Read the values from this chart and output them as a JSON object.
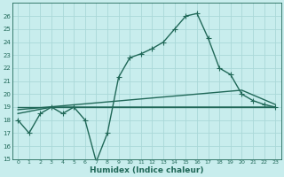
{
  "xlabel": "Humidex (Indice chaleur)",
  "xlim": [
    -0.5,
    23.5
  ],
  "ylim": [
    15,
    27
  ],
  "yticks": [
    15,
    16,
    17,
    18,
    19,
    20,
    21,
    22,
    23,
    24,
    25,
    26
  ],
  "xticks": [
    0,
    1,
    2,
    3,
    4,
    5,
    6,
    7,
    8,
    9,
    10,
    11,
    12,
    13,
    14,
    15,
    16,
    17,
    18,
    19,
    20,
    21,
    22,
    23
  ],
  "bg_color": "#c8eded",
  "grid_color": "#aad8d8",
  "line_color": "#206858",
  "line1_x": [
    0,
    1,
    2,
    3,
    4,
    5,
    6,
    7,
    8,
    9,
    10,
    11,
    12,
    13,
    14,
    15,
    16,
    17,
    18,
    19,
    20,
    21,
    22,
    23
  ],
  "line1_y": [
    18.0,
    17.0,
    18.5,
    19.0,
    18.5,
    19.0,
    18.0,
    14.8,
    17.0,
    21.3,
    22.8,
    23.1,
    23.5,
    24.0,
    25.0,
    26.0,
    26.2,
    24.3,
    22.0,
    21.5,
    20.0,
    19.5,
    19.2,
    19.0
  ],
  "line2_x": [
    0,
    3,
    23
  ],
  "line2_y": [
    18.5,
    19.0,
    19.0
  ],
  "line3_x": [
    0,
    23
  ],
  "line3_y": [
    19.0,
    19.0
  ],
  "line4_x": [
    0,
    20,
    23
  ],
  "line4_y": [
    18.8,
    20.3,
    19.2
  ],
  "markersize": 2.5,
  "linewidth": 1.0
}
